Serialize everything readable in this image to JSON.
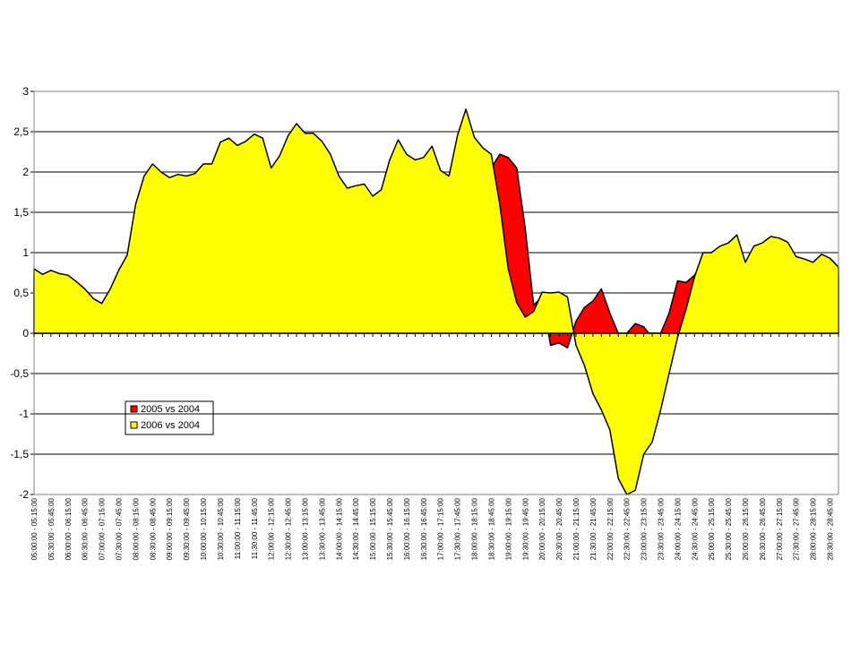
{
  "chart_data": {
    "type": "area",
    "categories": [
      "05:00:00 - 05:15:00",
      null,
      "05:30:00 - 05:45:00",
      null,
      "06:00:00 - 06:15:00",
      null,
      "06:30:00 - 06:45:00",
      null,
      "07:00:00 - 07:15:00",
      null,
      "07:30:00 - 07:45:00",
      null,
      "08:00:00 - 08:15:00",
      null,
      "08:30:00 - 08:45:00",
      null,
      "09:00:00 - 09:15:00",
      null,
      "09:30:00 - 09:45:00",
      null,
      "10:00:00 - 10:15:00",
      null,
      "10:30:00 - 10:45:00",
      null,
      "11:00:00 - 11:15:00",
      null,
      "11:30:00 - 11:45:00",
      null,
      "12:00:00 - 12:15:00",
      null,
      "12:30:00 - 12:45:00",
      null,
      "13:00:00 - 13:15:00",
      null,
      "13:30:00 - 13:45:00",
      null,
      "14:00:00 - 14:15:00",
      null,
      "14:30:00 - 14:45:00",
      null,
      "15:00:00 - 15:15:00",
      null,
      "15:30:00 - 15:45:00",
      null,
      "16:00:00 - 16:15:00",
      null,
      "16:30:00 - 16:45:00",
      null,
      "17:00:00 - 17:15:00",
      null,
      "17:30:00 - 17:45:00",
      null,
      "18:00:00 - 18:15:00",
      null,
      "18:30:00 - 18:45:00",
      null,
      "19:00:00 - 19:15:00",
      null,
      "19:30:00 - 19:45:00",
      null,
      "20:00:00 - 20:15:00",
      null,
      "20:30:00 - 20:45:00",
      null,
      "21:00:00 - 21:15:00",
      null,
      "21:30:00 - 21:45:00",
      null,
      "22:00:00 - 22:15:00",
      null,
      "22:30:00 - 22:45:00",
      null,
      "23:00:00 - 23:15:00",
      null,
      "23:30:00 - 23:45:00",
      null,
      "24:00:00 - 24:15:00",
      null,
      "24:30:00 - 24:45:00",
      null,
      "25:00:00 - 25:15:00",
      null,
      "25:30:00 - 25:45:00",
      null,
      "26:00:00 - 26:15:00",
      null,
      "26:30:00 - 26:45:00",
      null,
      "27:00:00 - 27:15:00",
      null,
      "27:30:00 - 27:45:00",
      null,
      "28:00:00 - 28:15:00",
      null,
      "28:30:00 - 28:45:00",
      null
    ],
    "series": [
      {
        "name": "2005 vs 2004",
        "color": "#ff0000",
        "values": [
          0.7,
          0.65,
          0.7,
          0.66,
          0.64,
          0.57,
          0.48,
          0.38,
          0.32,
          0.48,
          0.7,
          0.88,
          1.45,
          1.8,
          1.95,
          1.85,
          1.8,
          1.83,
          1.8,
          1.85,
          1.95,
          1.95,
          2.2,
          2.25,
          2.18,
          2.22,
          2.3,
          2.25,
          1.9,
          2.05,
          2.28,
          2.42,
          2.3,
          2.3,
          2.2,
          2.05,
          1.8,
          1.65,
          1.7,
          1.7,
          1.58,
          1.65,
          2.0,
          2.22,
          2.05,
          2.0,
          2.02,
          2.15,
          1.88,
          1.8,
          2.28,
          2.6,
          2.25,
          2.15,
          2.05,
          2.22,
          2.18,
          2.05,
          1.3,
          0.35,
          0.45,
          -0.15,
          -0.12,
          -0.18,
          0.15,
          0.32,
          0.4,
          0.55,
          0.25,
          0.0,
          0.0,
          0.12,
          0.08,
          -0.05,
          0.0,
          0.25,
          0.65,
          0.63,
          0.72,
          0.9,
          0.9,
          0.98,
          1.0,
          1.1,
          0.78,
          0.98,
          1.0,
          1.08,
          1.06,
          1.02,
          0.85,
          0.82,
          0.78,
          0.88,
          0.83,
          0.72
        ]
      },
      {
        "name": "2006 vs 2004",
        "color": "#ffff00",
        "values": [
          0.8,
          0.73,
          0.78,
          0.74,
          0.72,
          0.64,
          0.55,
          0.43,
          0.37,
          0.55,
          0.78,
          0.97,
          1.6,
          1.95,
          2.1,
          2.0,
          1.93,
          1.97,
          1.95,
          1.98,
          2.1,
          2.1,
          2.37,
          2.42,
          2.33,
          2.38,
          2.47,
          2.42,
          2.05,
          2.2,
          2.45,
          2.6,
          2.48,
          2.48,
          2.38,
          2.22,
          1.95,
          1.8,
          1.83,
          1.85,
          1.7,
          1.78,
          2.15,
          2.4,
          2.22,
          2.15,
          2.18,
          2.32,
          2.02,
          1.95,
          2.45,
          2.78,
          2.43,
          2.3,
          2.22,
          1.6,
          0.8,
          0.38,
          0.2,
          0.27,
          0.51,
          0.5,
          0.51,
          0.45,
          -0.15,
          -0.4,
          -0.75,
          -0.95,
          -1.2,
          -1.8,
          -2.0,
          -1.95,
          -1.5,
          -1.35,
          -0.95,
          -0.5,
          -0.05,
          0.3,
          0.7,
          1.0,
          1.0,
          1.08,
          1.12,
          1.22,
          0.88,
          1.08,
          1.12,
          1.2,
          1.18,
          1.13,
          0.95,
          0.92,
          0.88,
          0.98,
          0.93,
          0.82
        ]
      }
    ],
    "ylim": [
      -2,
      3
    ],
    "yticks": [
      -2,
      {
        "value": -1.5,
        "label": "-1,5"
      },
      -1,
      {
        "value": -0.5,
        "label": "-0,5"
      },
      0,
      {
        "value": 0.5,
        "label": "0,5"
      },
      1,
      {
        "value": 1.5,
        "label": "1,5"
      },
      2,
      {
        "value": 2.5,
        "label": "2,5"
      },
      3
    ],
    "grid": true
  }
}
